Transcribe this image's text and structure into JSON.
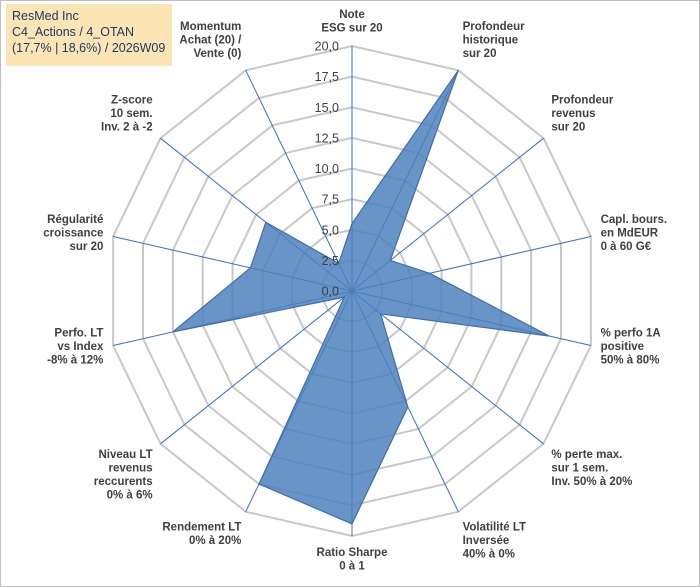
{
  "header": {
    "company": "ResMed Inc",
    "portfolio": "C4_Actions / 4_OTAN",
    "stats": "(17,7% | 18,6%) / 2026W09"
  },
  "chart_data": {
    "type": "radar",
    "title": "ResMed Inc",
    "rmin": 0,
    "rmax": 20,
    "tick_step": 2.5,
    "tick_labels": [
      "0,0",
      "2,5",
      "5,0",
      "7,5",
      "10,0",
      "12,5",
      "15,0",
      "17,5",
      "20,0"
    ],
    "categories": [
      "Note\nESG sur 20",
      "Profondeur\nhistorique\nsur 20",
      "Profondeur\nrevenus\nsur 20",
      "Capl. bours.\nen MdEUR\n0 à 60 G€",
      "% perfo 1A\npositive\n50% à 80%",
      "% perte max.\nsur 1 sem.\nInv. 50% à 20%",
      "Volatilité LT\nInversée\n40% à 0%",
      "Ratio Sharpe\n0 à 1",
      "Rendement LT\n0% à 20%",
      "Niveau LT\nrevenus\nreccurents\n0% à 6%",
      "Perfo. LT\nvs Index\n-8% à 12%",
      "Régularité\ncroissance\nsur 20",
      "Z-score\n10 sem.\nInv. 2 à -2",
      "Momentum\nAchat (20) /\nVente (0)"
    ],
    "series": [
      {
        "name": "ResMed Inc",
        "color": "#4f81bd",
        "values": [
          5.5,
          20.0,
          4.0,
          6.5,
          16.5,
          3.0,
          10.5,
          19.0,
          17.5,
          0.8,
          15.0,
          8.5,
          9.0,
          2.5
        ]
      }
    ]
  }
}
